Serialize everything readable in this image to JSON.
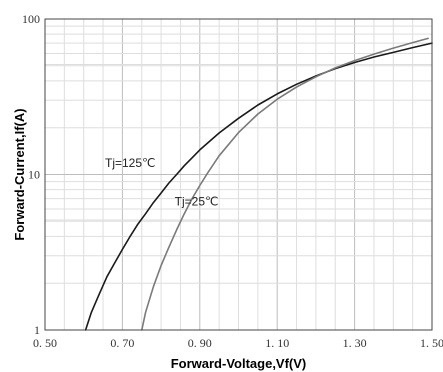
{
  "chart_data": {
    "type": "line",
    "title": "",
    "xlabel": "Forward-Voltage,Vf(V)",
    "ylabel": "Forward-Current,If(A)",
    "xlim": [
      0.5,
      1.5
    ],
    "ylim": [
      1,
      100
    ],
    "yscale": "log",
    "grid": true,
    "x_ticks": [
      0.5,
      0.7,
      0.9,
      1.1,
      1.3,
      1.5
    ],
    "x_tick_labels": [
      "0. 50",
      "0. 70",
      "0. 90",
      "1. 10",
      "1. 30",
      "1. 50"
    ],
    "y_ticks": [
      1,
      10,
      100
    ],
    "y_tick_labels": [
      "1",
      "10",
      "100"
    ],
    "series": [
      {
        "name": "Tj=125℃",
        "color": "#1a1a1a",
        "x": [
          0.605,
          0.62,
          0.64,
          0.66,
          0.68,
          0.7,
          0.72,
          0.74,
          0.76,
          0.78,
          0.8,
          0.82,
          0.84,
          0.86,
          0.88,
          0.9,
          0.95,
          1.0,
          1.05,
          1.1,
          1.15,
          1.2,
          1.25,
          1.3,
          1.35,
          1.4,
          1.45,
          1.5
        ],
        "y": [
          1.0,
          1.3,
          1.7,
          2.2,
          2.7,
          3.3,
          4.0,
          4.8,
          5.6,
          6.6,
          7.6,
          8.8,
          10.0,
          11.4,
          12.8,
          14.4,
          18.5,
          23.0,
          28.0,
          33.0,
          38.0,
          43.0,
          48.0,
          52.5,
          57.0,
          61.0,
          65.5,
          70.0
        ]
      },
      {
        "name": "Tj=25℃",
        "color": "#7a7a7a",
        "x": [
          0.75,
          0.76,
          0.78,
          0.8,
          0.82,
          0.84,
          0.86,
          0.88,
          0.9,
          0.92,
          0.95,
          1.0,
          1.05,
          1.1,
          1.15,
          1.2,
          1.25,
          1.3,
          1.35,
          1.4,
          1.45,
          1.49
        ],
        "y": [
          1.0,
          1.3,
          1.9,
          2.6,
          3.4,
          4.4,
          5.6,
          7.0,
          8.5,
          10.2,
          13.2,
          18.6,
          24.5,
          30.5,
          36.5,
          42.5,
          48.5,
          54.0,
          59.5,
          65.0,
          70.5,
          75.0
        ]
      }
    ],
    "annotations": [
      {
        "text": "Tj=125℃",
        "x": 0.655,
        "y": 11.2
      },
      {
        "text": "Tj=25℃",
        "x": 0.835,
        "y": 6.3
      }
    ]
  }
}
